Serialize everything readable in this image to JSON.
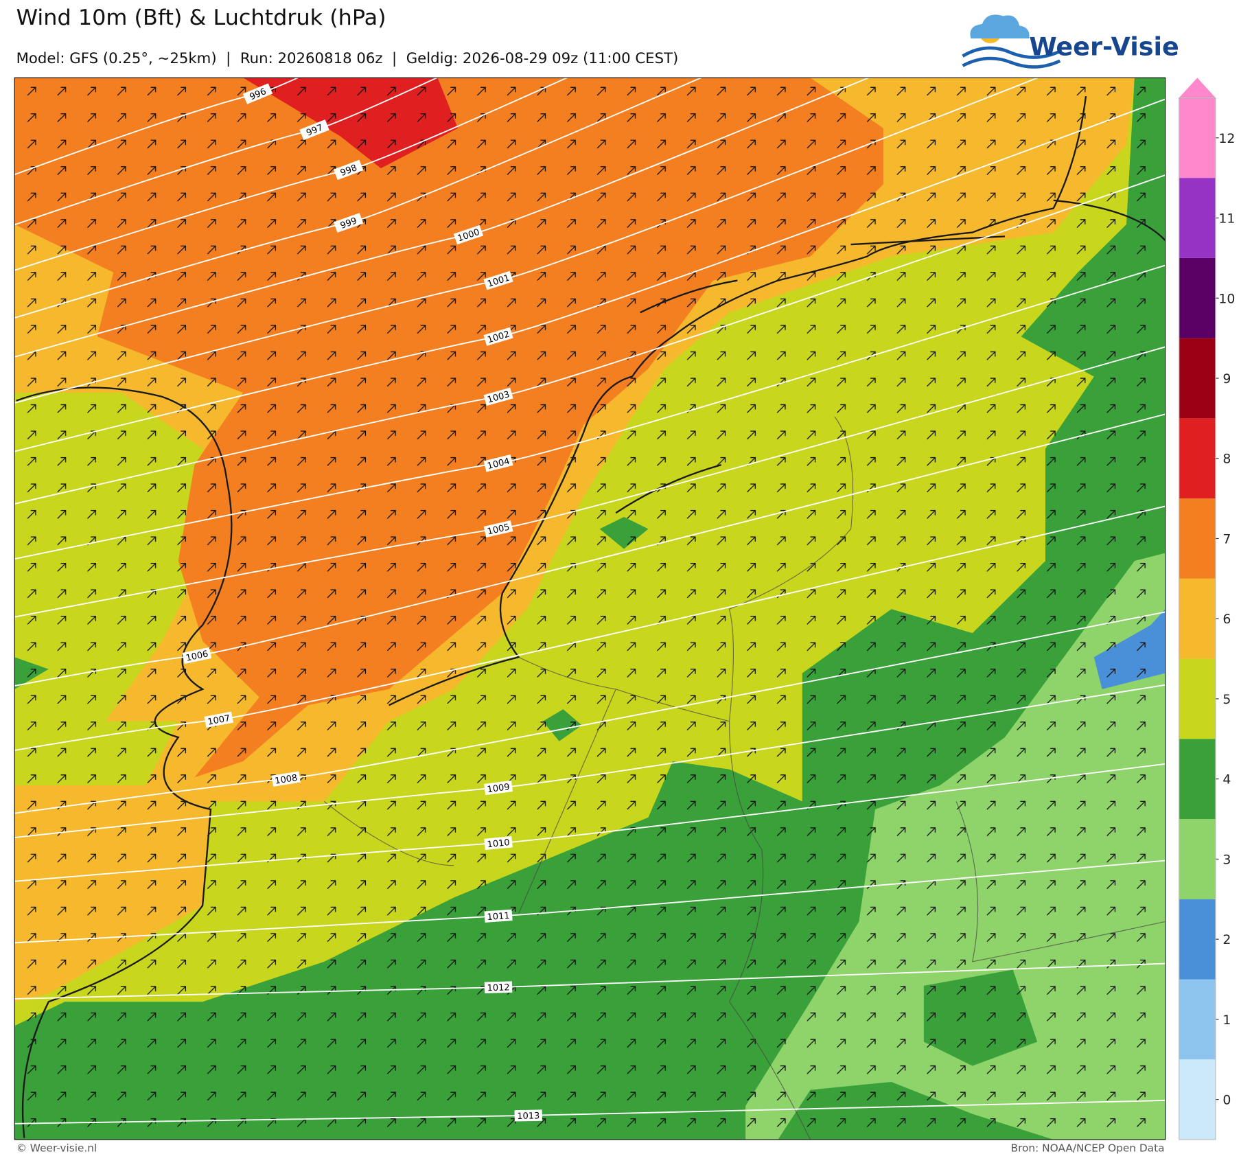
{
  "header": {
    "title": "Wind 10m (Bft) & Luchtdruk (hPa)",
    "subtitle": "Model: GFS (0.25°, ~25km)  |  Run: 20260818 06z  |  Geldig: 2026-08-29 09z (11:00 CEST)",
    "logo": "Weer-Visie"
  },
  "map": {
    "isobars": [
      996,
      997,
      998,
      999,
      1000,
      1001,
      1002,
      1003,
      1004,
      1005,
      1006,
      1007,
      1008,
      1009,
      1010,
      1011,
      1012,
      1013
    ]
  },
  "colorbar": {
    "levels": [
      0,
      1,
      2,
      3,
      4,
      5,
      6,
      7,
      8,
      9,
      10,
      11,
      12
    ],
    "colors": [
      "#cce8fb",
      "#8ec5ee",
      "#4a90d9",
      "#8fd46a",
      "#3aa13a",
      "#c8d61e",
      "#f6b82c",
      "#f47f20",
      "#e02020",
      "#9b0014",
      "#5a0064",
      "#9433c4",
      "#ff88cc"
    ]
  },
  "footer": {
    "left": "© Weer-visie.nl",
    "right": "Bron: NOAA/NCEP Open Data"
  }
}
